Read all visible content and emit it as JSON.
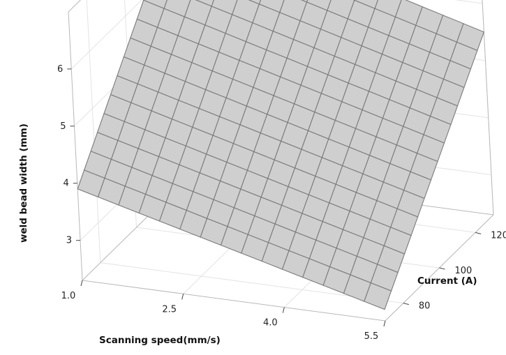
{
  "chart_data": {
    "type": "surface",
    "title": "",
    "xlabel": "Scanning speed(mm/s)",
    "ylabel": "Current (A)",
    "zlabel": "weld bead width (mm)",
    "x_ticks": [
      "1.0",
      "2.5",
      "4.0",
      "5.5"
    ],
    "y_ticks": [
      "80",
      "100",
      "120"
    ],
    "z_ticks": [
      "3",
      "4",
      "5",
      "6"
    ],
    "xlim": [
      1.0,
      5.5
    ],
    "ylim": [
      70,
      130
    ],
    "zlim": [
      2.3,
      7.0
    ],
    "grid": true,
    "mesh_divisions": 15,
    "surface_color": "#cfcfcf",
    "mesh_color": "#7a7a7a",
    "corners": [
      {
        "x": 1.0,
        "y": 70,
        "z": 3.9
      },
      {
        "x": 5.5,
        "y": 70,
        "z": 2.5
      },
      {
        "x": 5.5,
        "y": 130,
        "z": 5.5
      },
      {
        "x": 1.0,
        "y": 130,
        "z": 7.0
      }
    ]
  }
}
